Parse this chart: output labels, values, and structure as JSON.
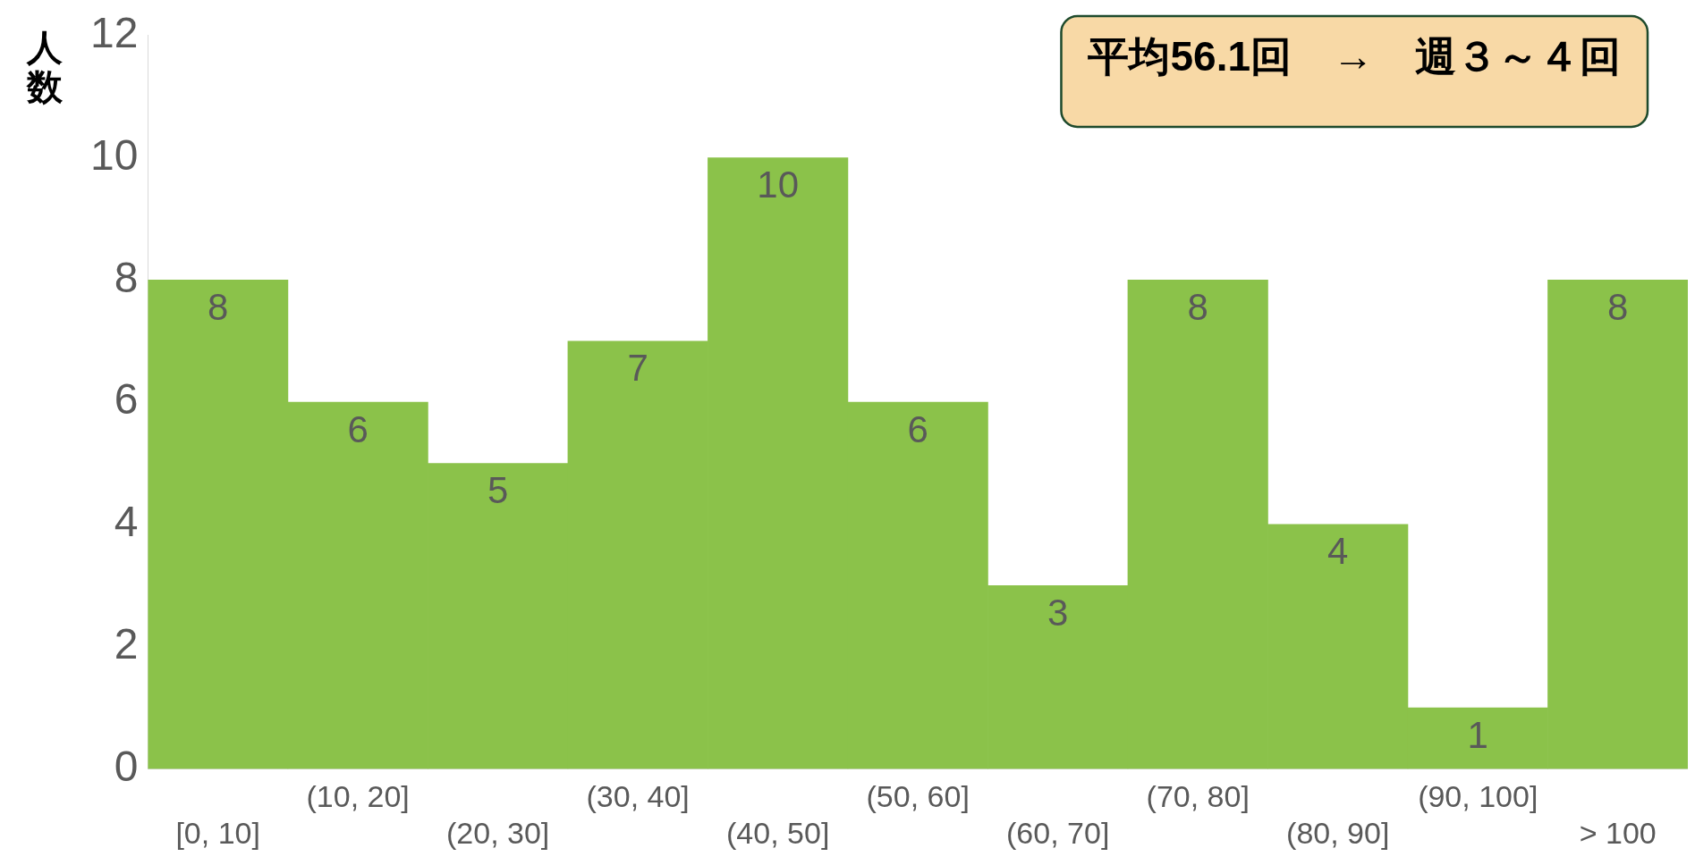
{
  "chart_data": {
    "type": "bar",
    "ylabel": "人数",
    "categories": [
      "[0, 10]",
      "(10, 20]",
      "(20, 30]",
      "(30, 40]",
      "(40, 50]",
      "(50, 60]",
      "(60, 70]",
      "(70, 80]",
      "(80, 90]",
      "(90, 100]",
      "> 100"
    ],
    "values": [
      8,
      6,
      5,
      7,
      10,
      6,
      3,
      8,
      4,
      1,
      8
    ],
    "color": "#8bc24a",
    "ylim": [
      0,
      12
    ],
    "yticks": [
      0,
      2,
      4,
      6,
      8,
      10,
      12
    ],
    "grid": false,
    "legend": false,
    "data_labels": true,
    "annotations": [
      "平均56.1回　→　週３～４回"
    ]
  }
}
